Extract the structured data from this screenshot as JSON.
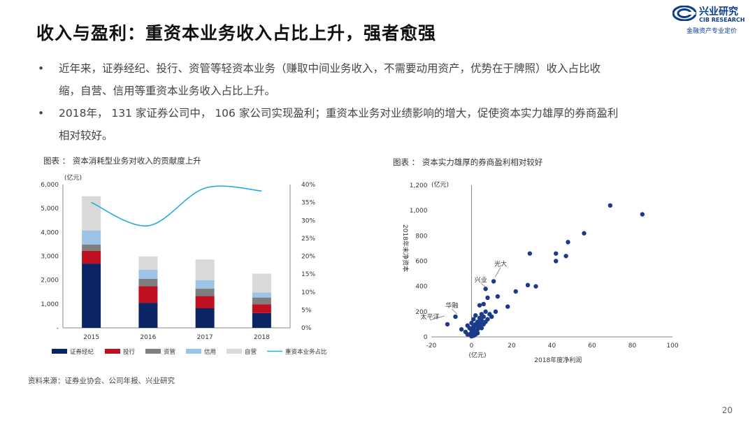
{
  "title": "收入与盈利：重资本业务收入占比上升，强者愈强",
  "logo": {
    "cn": "兴业研究",
    "en": "CIB RESEARCH",
    "slogan": "金融资产专业定价"
  },
  "bullets": [
    {
      "line1": "近年来，证券经纪、投行、资管等轻资本业务（赚取中间业务收入，不需要动用资产，优势在于牌照）收入占比收",
      "line2": "缩，自营、信用等重资本业务收入占比上升。"
    },
    {
      "line1": "2018年， 131 家证券公司中， 106 家公司实现盈利；重资本业务对业绩影响的增大，促使资本实力雄厚的券商盈利",
      "line2": "相对较好。"
    }
  ],
  "bullet_symbol": "•",
  "chart1_caption": "图表 ： 资本消耗型业务对收入的贡献度上升",
  "chart2_caption": "图表 ： 资本实力雄厚的券商盈利相对较好",
  "source": "资料来源：证券业协会、公司年报、兴业研究",
  "page_number": "20",
  "chart_data": [
    {
      "type": "bar",
      "stacked": true,
      "unit_label": "(亿元)",
      "categories": [
        "2015",
        "2016",
        "2017",
        "2018"
      ],
      "ylim": [
        0,
        6000
      ],
      "y_ticks": [
        "-",
        "1,000",
        "2,000",
        "3,000",
        "4,000",
        "5,000",
        "6,000"
      ],
      "y2lim": [
        0,
        40
      ],
      "y2_ticks": [
        "0%",
        "5%",
        "10%",
        "15%",
        "20%",
        "25%",
        "30%",
        "35%",
        "40%"
      ],
      "series": [
        {
          "name": "证券经纪",
          "color": "#0b2466",
          "values": [
            2690,
            1050,
            820,
            620
          ]
        },
        {
          "name": "投行",
          "color": "#c0101f",
          "values": [
            530,
            690,
            510,
            370
          ]
        },
        {
          "name": "资管",
          "color": "#7f7f7f",
          "values": [
            270,
            310,
            310,
            280
          ]
        },
        {
          "name": "信用",
          "color": "#9dc3e6",
          "values": [
            590,
            380,
            350,
            210
          ]
        },
        {
          "name": "自营",
          "color": "#d9d9d9",
          "values": [
            1430,
            560,
            870,
            790
          ]
        }
      ],
      "line_series": {
        "name": "重资本业务占比",
        "color": "#29abe2",
        "axis": "right",
        "values": [
          35,
          28.5,
          39,
          38.2
        ]
      },
      "legend_position": "bottom"
    },
    {
      "type": "scatter",
      "ylabel": "2018年末净资本",
      "xlabel": "2018年度净利润",
      "x_unit_label": "(亿元)",
      "y_unit_label": "(亿元)",
      "xlim": [
        -20,
        100
      ],
      "ylim": [
        0,
        1200
      ],
      "x_ticks": [
        "-20",
        "0",
        "20",
        "40",
        "60",
        "80",
        "100"
      ],
      "y_ticks": [
        "0",
        "200",
        "400",
        "600",
        "800",
        "1,000",
        "1,200"
      ],
      "point_color": "#1a3a8a",
      "points": [
        [
          -12,
          100
        ],
        [
          -8,
          160
        ],
        [
          -5,
          60
        ],
        [
          -3,
          40
        ],
        [
          -2,
          90
        ],
        [
          -1,
          70
        ],
        [
          -1,
          20
        ],
        [
          0,
          50
        ],
        [
          0,
          110
        ],
        [
          0,
          30
        ],
        [
          1,
          80
        ],
        [
          1,
          140
        ],
        [
          1,
          60
        ],
        [
          2,
          100
        ],
        [
          2,
          40
        ],
        [
          2,
          170
        ],
        [
          3,
          120
        ],
        [
          3,
          80
        ],
        [
          3,
          60
        ],
        [
          4,
          150
        ],
        [
          4,
          110
        ],
        [
          4,
          90
        ],
        [
          5,
          130
        ],
        [
          5,
          70
        ],
        [
          5,
          180
        ],
        [
          6,
          100
        ],
        [
          6,
          160
        ],
        [
          7,
          120
        ],
        [
          7,
          200
        ],
        [
          8,
          140
        ],
        [
          9,
          180
        ],
        [
          10,
          160
        ],
        [
          12,
          200
        ],
        [
          4,
          250
        ],
        [
          6,
          260
        ],
        [
          8,
          310
        ],
        [
          7,
          380
        ],
        [
          11,
          440
        ],
        [
          13,
          320
        ],
        [
          18,
          240
        ],
        [
          22,
          360
        ],
        [
          28,
          410
        ],
        [
          32,
          400
        ],
        [
          29,
          660
        ],
        [
          42,
          660
        ],
        [
          42,
          600
        ],
        [
          47,
          640
        ],
        [
          48,
          750
        ],
        [
          56,
          820
        ],
        [
          69,
          1040
        ],
        [
          85,
          970
        ],
        [
          1,
          10
        ],
        [
          2,
          20
        ],
        [
          3,
          30
        ],
        [
          -2,
          20
        ],
        [
          0,
          5
        ]
      ],
      "annotations": [
        {
          "label": "太平洋",
          "x": -12,
          "y": 100
        },
        {
          "label": "华融",
          "x": -8,
          "y": 160
        },
        {
          "label": "兴业",
          "x": 6,
          "y": 380
        },
        {
          "label": "光大",
          "x": 11,
          "y": 440
        }
      ]
    }
  ]
}
